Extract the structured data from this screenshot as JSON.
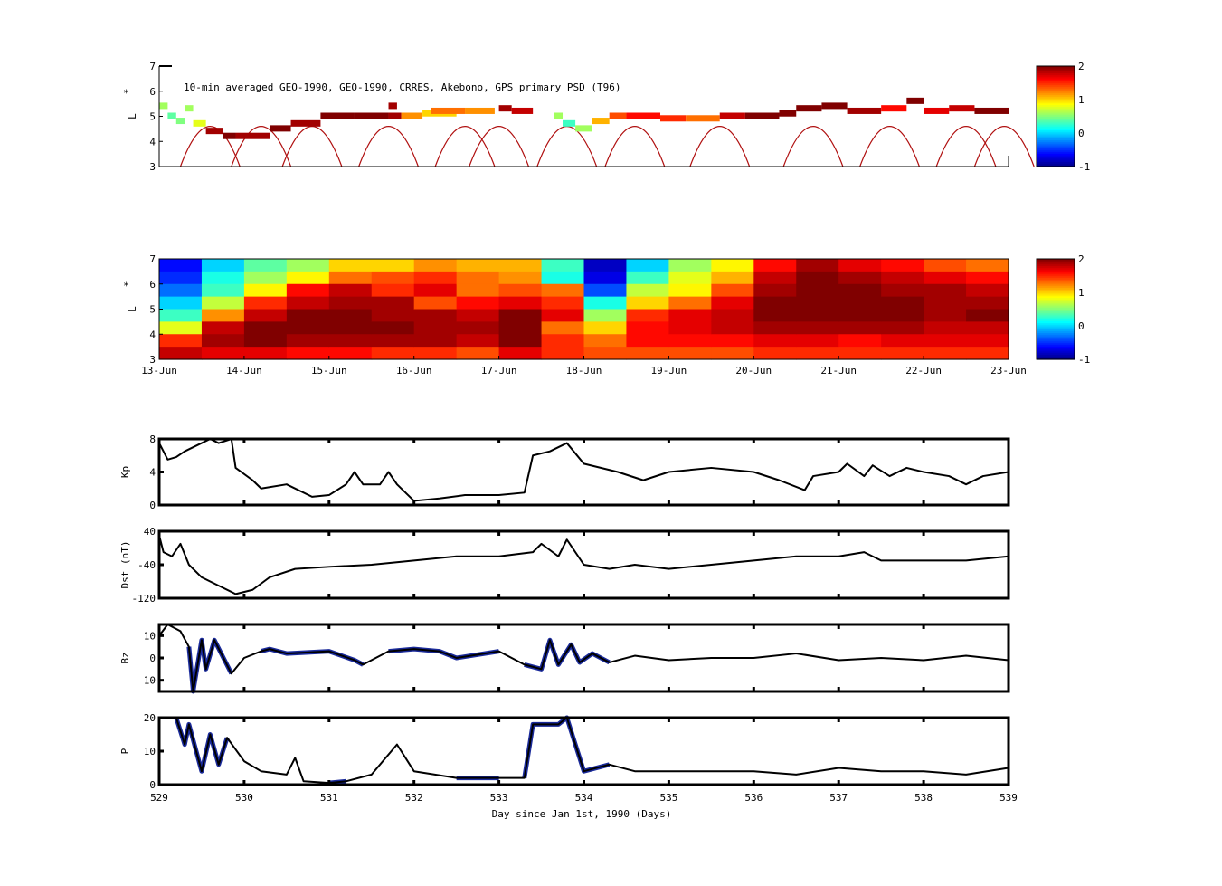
{
  "chart_data": [
    {
      "type": "scatter",
      "title": "10-min averaged GEO-1990, GEO-1990, CRRES, Akebono, GPS  primary PSD (T96)",
      "ylabel": "L*",
      "ylim": [
        3,
        7
      ],
      "yticks": [
        "3",
        "4",
        "5",
        "6",
        "7"
      ],
      "xlim_days": [
        0,
        10
      ],
      "colorbar": {
        "range": [
          -1,
          2
        ],
        "ticks": [
          "-1",
          "0",
          "1",
          "2"
        ]
      },
      "segments_day_L_value": [
        [
          0.0,
          0.1,
          5.4,
          0.6
        ],
        [
          0.1,
          0.2,
          5.0,
          0.4
        ],
        [
          0.2,
          0.3,
          4.8,
          0.5
        ],
        [
          0.3,
          0.4,
          5.3,
          0.6
        ],
        [
          0.4,
          0.55,
          4.7,
          0.8
        ],
        [
          0.55,
          0.75,
          4.4,
          1.9
        ],
        [
          0.75,
          0.9,
          4.2,
          2.0
        ],
        [
          0.9,
          1.3,
          4.2,
          1.9
        ],
        [
          1.3,
          1.55,
          4.5,
          2.0
        ],
        [
          1.55,
          1.9,
          4.7,
          1.9
        ],
        [
          1.9,
          2.3,
          5.0,
          2.1
        ],
        [
          2.3,
          2.7,
          5.0,
          2.2
        ],
        [
          2.7,
          2.85,
          5.0,
          1.9
        ],
        [
          2.85,
          3.1,
          5.0,
          1.2
        ],
        [
          3.1,
          3.5,
          5.1,
          1.0
        ],
        [
          2.7,
          2.8,
          5.4,
          1.9
        ],
        [
          3.2,
          3.6,
          5.2,
          1.3
        ],
        [
          3.6,
          3.95,
          5.2,
          1.2
        ],
        [
          4.0,
          4.15,
          5.3,
          1.9
        ],
        [
          4.15,
          4.4,
          5.2,
          1.8
        ],
        [
          4.65,
          4.75,
          5.0,
          0.6
        ],
        [
          4.75,
          4.9,
          4.7,
          0.3
        ],
        [
          4.9,
          5.1,
          4.5,
          0.6
        ],
        [
          5.1,
          5.3,
          4.8,
          1.1
        ],
        [
          5.3,
          5.5,
          5.0,
          1.4
        ],
        [
          5.5,
          5.9,
          5.0,
          1.6
        ],
        [
          5.9,
          6.2,
          4.9,
          1.5
        ],
        [
          6.2,
          6.6,
          4.9,
          1.3
        ],
        [
          6.6,
          6.9,
          5.0,
          1.8
        ],
        [
          6.9,
          7.3,
          5.0,
          2.1
        ],
        [
          7.3,
          7.5,
          5.1,
          2.0
        ],
        [
          7.5,
          7.8,
          5.3,
          2.1
        ],
        [
          7.8,
          8.1,
          5.4,
          2.0
        ],
        [
          8.1,
          8.5,
          5.2,
          1.9
        ],
        [
          8.5,
          8.8,
          5.3,
          1.6
        ],
        [
          8.8,
          9.0,
          5.6,
          2.0
        ],
        [
          9.0,
          9.3,
          5.2,
          1.7
        ],
        [
          9.3,
          9.6,
          5.3,
          1.8
        ],
        [
          9.6,
          10.0,
          5.2,
          2.0
        ]
      ],
      "passes_day": [
        0.6,
        1.2,
        1.8,
        2.7,
        3.6,
        4.0,
        4.8,
        5.6,
        6.6,
        7.7,
        8.6,
        9.5,
        9.95
      ]
    },
    {
      "type": "heatmap",
      "ylabel": "L*",
      "ylim": [
        3,
        7
      ],
      "yticks": [
        "3",
        "4",
        "5",
        "6",
        "7"
      ],
      "xticks": [
        "13-Jun",
        "14-Jun",
        "15-Jun",
        "16-Jun",
        "17-Jun",
        "18-Jun",
        "19-Jun",
        "20-Jun",
        "21-Jun",
        "22-Jun",
        "23-Jun"
      ],
      "colorbar": {
        "range": [
          -1,
          2
        ],
        "ticks": [
          "-1",
          "0",
          "1",
          "2"
        ]
      },
      "rows_L_top_to_bottom": [
        6.75,
        6.25,
        5.75,
        5.25,
        4.75,
        4.25,
        3.75,
        3.25
      ],
      "columns_half_day": [
        [
          -0.6,
          -0.5,
          -0.3,
          0,
          0.3,
          0.8,
          1.5,
          1.8
        ],
        [
          0,
          0.2,
          0.3,
          0.7,
          1.2,
          1.8,
          1.9,
          1.7
        ],
        [
          0.4,
          0.6,
          0.9,
          1.5,
          1.8,
          2,
          2,
          1.7
        ],
        [
          0.6,
          0.9,
          1.6,
          1.8,
          2,
          2,
          1.9,
          1.6
        ],
        [
          1,
          1.3,
          1.8,
          1.9,
          2,
          2,
          1.9,
          1.6
        ],
        [
          1,
          1.4,
          1.5,
          1.9,
          1.9,
          2,
          1.9,
          1.5
        ],
        [
          1.2,
          1.5,
          1.7,
          1.4,
          1.9,
          1.9,
          1.9,
          1.5
        ],
        [
          1.1,
          1.3,
          1.3,
          1.6,
          1.8,
          1.9,
          1.8,
          1.4
        ],
        [
          1.1,
          1.2,
          1.4,
          1.7,
          2,
          2,
          2.1,
          1.7
        ],
        [
          0.3,
          0.2,
          1.3,
          1.5,
          1.7,
          1.3,
          1.5,
          1.5
        ],
        [
          -0.8,
          -0.7,
          -0.4,
          0.2,
          0.6,
          1,
          1.3,
          1.4
        ],
        [
          0,
          0.3,
          0.7,
          1,
          1.5,
          1.6,
          1.6,
          1.4
        ],
        [
          0.6,
          0.8,
          0.9,
          1.3,
          1.7,
          1.7,
          1.6,
          1.4
        ],
        [
          0.9,
          1.1,
          1.4,
          1.7,
          1.8,
          1.8,
          1.6,
          1.4
        ],
        [
          1.6,
          1.8,
          1.9,
          2,
          2,
          1.9,
          1.7,
          1.5
        ],
        [
          1.9,
          2,
          2.1,
          2.1,
          2.1,
          1.9,
          1.7,
          1.5
        ],
        [
          1.7,
          1.9,
          2,
          2,
          2,
          1.9,
          1.6,
          1.5
        ],
        [
          1.6,
          1.8,
          1.9,
          2,
          2,
          1.9,
          1.7,
          1.5
        ],
        [
          1.4,
          1.7,
          1.9,
          1.9,
          1.9,
          1.8,
          1.7,
          1.5
        ],
        [
          1.3,
          1.6,
          1.8,
          1.9,
          2,
          1.8,
          1.7,
          1.5
        ]
      ]
    },
    {
      "type": "line",
      "ylabel": "Kp",
      "ylim": [
        0,
        8
      ],
      "yticks": [
        "0",
        "4",
        "8"
      ],
      "xlim": [
        529,
        539
      ],
      "x": [
        529,
        529.1,
        529.2,
        529.3,
        529.5,
        529.6,
        529.7,
        529.85,
        529.9,
        530.1,
        530.2,
        530.5,
        530.8,
        531,
        531.2,
        531.3,
        531.4,
        531.6,
        531.7,
        531.8,
        532,
        532.3,
        532.6,
        533,
        533.3,
        533.4,
        533.6,
        533.8,
        534,
        534.4,
        534.7,
        535,
        535.5,
        536,
        536.3,
        536.6,
        536.7,
        537,
        537.1,
        537.3,
        537.4,
        537.6,
        537.8,
        538,
        538.3,
        538.5,
        538.7,
        539
      ],
      "y": [
        7.5,
        5.5,
        5.8,
        6.5,
        7.5,
        8,
        7.5,
        8,
        4.5,
        3,
        2,
        2.5,
        1,
        1.2,
        2.5,
        4,
        2.5,
        2.5,
        4,
        2.5,
        0.5,
        0.8,
        1.2,
        1.2,
        1.5,
        6,
        6.5,
        7.5,
        5,
        4,
        3,
        4,
        4.5,
        4,
        3,
        1.8,
        3.5,
        4,
        5,
        3.5,
        4.8,
        3.5,
        4.5,
        4,
        3.5,
        2.5,
        3.5,
        4
      ]
    },
    {
      "type": "line",
      "ylabel": "Dst (nT)",
      "ylim": [
        -120,
        40
      ],
      "yticks": [
        "-120",
        "-40",
        "40"
      ],
      "xlim": [
        529,
        539
      ],
      "x": [
        529,
        529.05,
        529.15,
        529.25,
        529.35,
        529.5,
        529.7,
        529.9,
        530.1,
        530.3,
        530.6,
        531,
        531.5,
        532,
        532.5,
        533,
        533.4,
        533.5,
        533.7,
        533.8,
        534,
        534.3,
        534.6,
        535,
        535.5,
        536,
        536.5,
        537,
        537.3,
        537.5,
        538,
        538.5,
        539
      ],
      "y": [
        30,
        -10,
        -20,
        10,
        -40,
        -70,
        -90,
        -110,
        -100,
        -70,
        -50,
        -45,
        -40,
        -30,
        -20,
        -20,
        -10,
        10,
        -20,
        20,
        -40,
        -50,
        -40,
        -50,
        -40,
        -30,
        -20,
        -20,
        -10,
        -30,
        -30,
        -30,
        -20
      ]
    },
    {
      "type": "line",
      "ylabel": "Bz",
      "ylim": [
        -15,
        15
      ],
      "yticks": [
        "-10",
        "0",
        "10"
      ],
      "xlim": [
        529,
        539
      ],
      "x": [
        529,
        529.1,
        529.25,
        529.35,
        529.4,
        529.5,
        529.55,
        529.65,
        529.85,
        530,
        530.2,
        530.3,
        530.5,
        531,
        531.3,
        531.4,
        531.7,
        532,
        532.3,
        532.5,
        533,
        533.3,
        533.5,
        533.6,
        533.7,
        533.85,
        533.95,
        534.1,
        534.3,
        534.6,
        535,
        535.5,
        536,
        536.5,
        537,
        537.5,
        538,
        538.5,
        539
      ],
      "y": [
        10,
        15,
        12,
        5,
        -15,
        8,
        -5,
        8,
        -7,
        0,
        3,
        4,
        2,
        3,
        -1,
        -3,
        3,
        4,
        3,
        0,
        3,
        -3,
        -5,
        8,
        -3,
        6,
        -2,
        2,
        -2,
        1,
        -1,
        0,
        0,
        2,
        -1,
        0,
        -1,
        1,
        -1
      ],
      "highlight_ranges": [
        [
          529.3,
          529.9
        ],
        [
          530.2,
          531.4
        ],
        [
          531.6,
          533.2
        ],
        [
          533.3,
          534.3
        ]
      ],
      "highlight_color": "#1a2a9a"
    },
    {
      "type": "line",
      "ylabel": "P",
      "ylim": [
        0,
        20
      ],
      "yticks": [
        "0",
        "10",
        "20"
      ],
      "xlim": [
        529,
        539
      ],
      "xticks": [
        "529",
        "530",
        "531",
        "532",
        "533",
        "534",
        "535",
        "536",
        "537",
        "538",
        "539"
      ],
      "xlabel": "Day since Jan 1st, 1990 (Days)",
      "x": [
        529.2,
        529.3,
        529.35,
        529.5,
        529.6,
        529.7,
        529.8,
        530,
        530.2,
        530.5,
        530.6,
        530.7,
        531,
        531.2,
        531.5,
        531.8,
        532,
        532.5,
        533,
        533.3,
        533.4,
        533.7,
        533.8,
        534,
        534.3,
        534.6,
        535,
        536,
        536.5,
        537,
        537.5,
        538,
        538.5,
        539
      ],
      "y": [
        20,
        12,
        18,
        4,
        15,
        6,
        14,
        7,
        4,
        3,
        8,
        1,
        0.5,
        1,
        3,
        12,
        4,
        2,
        2,
        2,
        18,
        18,
        20,
        4,
        6,
        4,
        4,
        4,
        3,
        5,
        4,
        4,
        3,
        5
      ],
      "highlight_ranges": [
        [
          529.2,
          529.9
        ],
        [
          530.8,
          531.4
        ],
        [
          532.2,
          533.2
        ],
        [
          533.3,
          534.3
        ]
      ],
      "highlight_color": "#1a2a9a"
    }
  ]
}
